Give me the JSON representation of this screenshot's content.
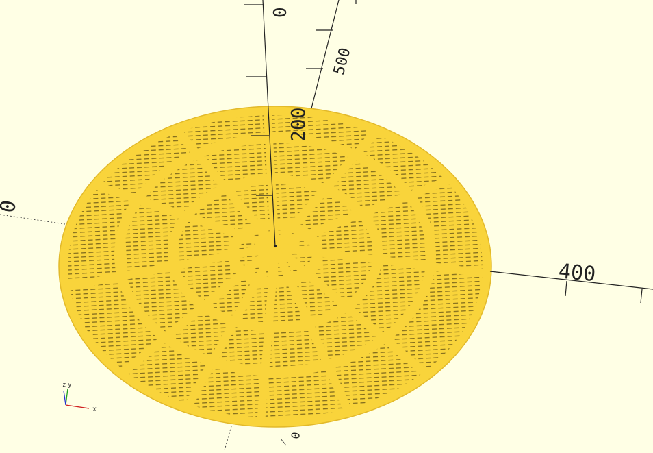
{
  "viewport": {
    "background": "#ffffe5",
    "model_color": "#f9d43b",
    "model_edge_color": "#e2b92a",
    "slot_color": "#6e5a18",
    "axis_color": "#222222"
  },
  "axes": {
    "tick_labels": [
      "0",
      "400",
      "200",
      "500",
      "0"
    ],
    "far_label": "0"
  },
  "gizmo": {
    "x_label": "x",
    "y_label": "y",
    "z_label": "z"
  }
}
